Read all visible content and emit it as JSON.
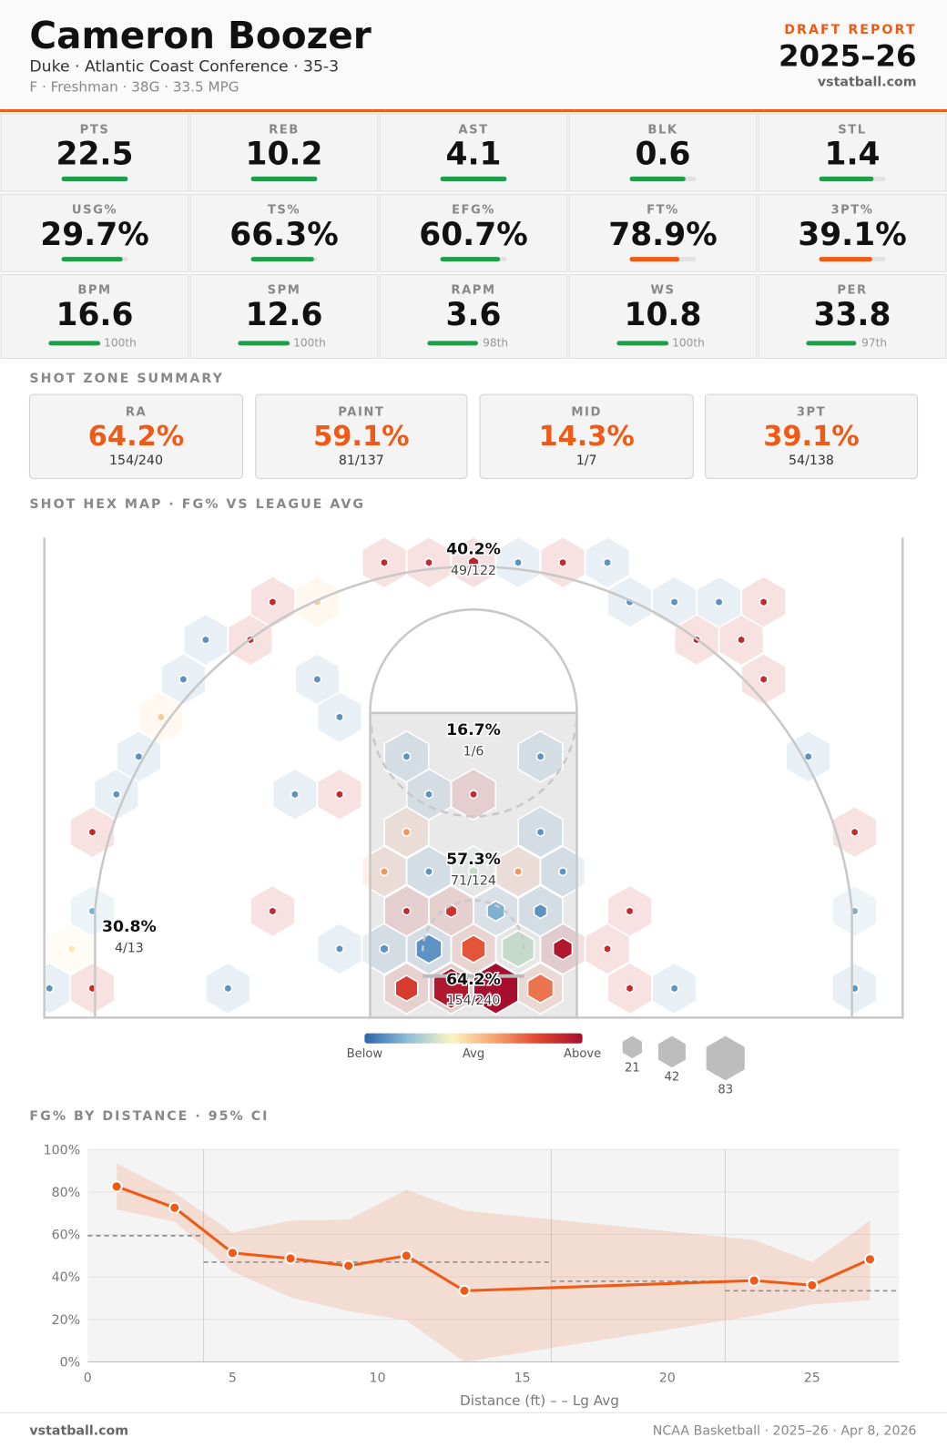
{
  "header": {
    "name": "Cameron Boozer",
    "subtitle": "Duke · Atlantic Coast Conference · 35-3",
    "meta": "F · Freshman · 38G · 33.5 MPG",
    "report_label": "DRAFT REPORT",
    "season": "2025–26",
    "site": "vstatball.com"
  },
  "stats": [
    {
      "label": "PTS",
      "value": "22.5",
      "bar": 100,
      "bar_color": "#1f9e4a"
    },
    {
      "label": "REB",
      "value": "10.2",
      "bar": 100,
      "bar_color": "#1f9e4a"
    },
    {
      "label": "AST",
      "value": "4.1",
      "bar": 100,
      "bar_color": "#1f9e4a"
    },
    {
      "label": "BLK",
      "value": "0.6",
      "bar": 84,
      "bar_color": "#1f9e4a"
    },
    {
      "label": "STL",
      "value": "1.4",
      "bar": 82,
      "bar_color": "#1f9e4a"
    },
    {
      "label": "USG%",
      "value": "29.7%",
      "bar": 92,
      "bar_color": "#1f9e4a"
    },
    {
      "label": "TS%",
      "value": "66.3%",
      "bar": 95,
      "bar_color": "#1f9e4a"
    },
    {
      "label": "EFG%",
      "value": "60.7%",
      "bar": 90,
      "bar_color": "#1f9e4a"
    },
    {
      "label": "FT%",
      "value": "78.9%",
      "bar": 75,
      "bar_color": "#f05a14"
    },
    {
      "label": "3PT%",
      "value": "39.1%",
      "bar": 80,
      "bar_color": "#f05a14"
    },
    {
      "label": "BPM",
      "value": "16.6",
      "bar": 100,
      "bar_label": "100th",
      "bar_color": "#1f9e4a"
    },
    {
      "label": "SPM",
      "value": "12.6",
      "bar": 100,
      "bar_label": "100th",
      "bar_color": "#1f9e4a"
    },
    {
      "label": "RAPM",
      "value": "3.6",
      "bar": 98,
      "bar_label": "98th",
      "bar_color": "#1f9e4a"
    },
    {
      "label": "WS",
      "value": "10.8",
      "bar": 100,
      "bar_label": "100th",
      "bar_color": "#1f9e4a"
    },
    {
      "label": "PER",
      "value": "33.8",
      "bar": 97,
      "bar_label": "97th",
      "bar_color": "#1f9e4a"
    }
  ],
  "zones": {
    "title": "SHOT ZONE SUMMARY",
    "items": [
      {
        "label": "RA",
        "pct": "64.2%",
        "made": "154/240"
      },
      {
        "label": "PAINT",
        "pct": "59.1%",
        "made": "81/137"
      },
      {
        "label": "MID",
        "pct": "14.3%",
        "made": "1/7"
      },
      {
        "label": "3PT",
        "pct": "39.1%",
        "made": "54/138"
      }
    ]
  },
  "chart_data": [
    {
      "type": "hexbin",
      "title": "SHOT HEX MAP · FG% VS LEAGUE AVG",
      "clim": [
        -15,
        15
      ],
      "colors": [
        "#2b65ad",
        "#90bfd6",
        "#fbf5c0",
        "#f6a26e",
        "#e0452f",
        "#a50f2d"
      ],
      "color_legend": [
        "Below",
        "Avg",
        "Above"
      ],
      "size_legend": [
        21,
        42,
        83
      ],
      "annotations": [
        {
          "pct": "40.2%",
          "made": "49/122"
        },
        {
          "pct": "16.7%",
          "made": "1/6"
        },
        {
          "pct": "57.3%",
          "made": "71/124"
        },
        {
          "pct": "64.2%",
          "made": "154/240"
        },
        {
          "pct": "30.8%",
          "made": "4/13"
        }
      ],
      "hexes": [
        {
          "x": -24.7,
          "y": 1.7,
          "attempts": 3,
          "diff": -12
        },
        {
          "x": -22.2,
          "y": 1.7,
          "attempts": 3,
          "diff": 12
        },
        {
          "x": -14.3,
          "y": 1.7,
          "attempts": 3,
          "diff": -12
        },
        {
          "x": -3.9,
          "y": 1.7,
          "attempts": 28,
          "diff": 10
        },
        {
          "x": -1.3,
          "y": 1.7,
          "attempts": 70,
          "diff": 14
        },
        {
          "x": 1.3,
          "y": 1.7,
          "attempts": 110,
          "diff": 15
        },
        {
          "x": 3.9,
          "y": 1.7,
          "attempts": 36,
          "diff": 6
        },
        {
          "x": 9.1,
          "y": 1.7,
          "attempts": 3,
          "diff": 12
        },
        {
          "x": 11.7,
          "y": 1.7,
          "attempts": 3,
          "diff": -12
        },
        {
          "x": 22.2,
          "y": 1.7,
          "attempts": 3,
          "diff": -12
        },
        {
          "x": -23.4,
          "y": 4.0,
          "attempts": 3,
          "diff": -2
        },
        {
          "x": -7.8,
          "y": 4.0,
          "attempts": 3,
          "diff": -12
        },
        {
          "x": -5.2,
          "y": 4.0,
          "attempts": 4,
          "diff": -12
        },
        {
          "x": -2.6,
          "y": 4.0,
          "attempts": 36,
          "diff": -12
        },
        {
          "x": 0,
          "y": 4.0,
          "attempts": 32,
          "diff": 8
        },
        {
          "x": 2.6,
          "y": 4.0,
          "attempts": 57,
          "diff": -6
        },
        {
          "x": 5.2,
          "y": 4.0,
          "attempts": 20,
          "diff": 14
        },
        {
          "x": 7.8,
          "y": 4.0,
          "attempts": 3,
          "diff": 12
        },
        {
          "x": -22.2,
          "y": 6.2,
          "attempts": 3,
          "diff": -10
        },
        {
          "x": -11.7,
          "y": 6.2,
          "attempts": 3,
          "diff": 12
        },
        {
          "x": -3.9,
          "y": 6.2,
          "attempts": 3,
          "diff": 12
        },
        {
          "x": -1.3,
          "y": 6.2,
          "attempts": 7,
          "diff": 11
        },
        {
          "x": 1.3,
          "y": 6.2,
          "attempts": 17,
          "diff": -10
        },
        {
          "x": 3.9,
          "y": 6.2,
          "attempts": 9,
          "diff": -12
        },
        {
          "x": 9.1,
          "y": 6.2,
          "attempts": 3,
          "diff": 12
        },
        {
          "x": 22.2,
          "y": 6.2,
          "attempts": 3,
          "diff": -10
        },
        {
          "x": -5.2,
          "y": 8.5,
          "attempts": 3,
          "diff": 4
        },
        {
          "x": -2.6,
          "y": 8.5,
          "attempts": 3,
          "diff": -12
        },
        {
          "x": 0,
          "y": 8.5,
          "attempts": 5,
          "diff": -6
        },
        {
          "x": 2.6,
          "y": 8.5,
          "attempts": 3,
          "diff": 4
        },
        {
          "x": 5.2,
          "y": 8.5,
          "attempts": 3,
          "diff": -12
        },
        {
          "x": -22.2,
          "y": 10.8,
          "attempts": 3,
          "diff": 12
        },
        {
          "x": -3.9,
          "y": 10.8,
          "attempts": 3,
          "diff": 4
        },
        {
          "x": 3.9,
          "y": 10.8,
          "attempts": 3,
          "diff": -12
        },
        {
          "x": 22.2,
          "y": 10.8,
          "attempts": 3,
          "diff": 12
        },
        {
          "x": -20.8,
          "y": 13.0,
          "attempts": 3,
          "diff": -12
        },
        {
          "x": -10.4,
          "y": 13.0,
          "attempts": 3,
          "diff": -12
        },
        {
          "x": -7.8,
          "y": 13.0,
          "attempts": 3,
          "diff": 12
        },
        {
          "x": -2.6,
          "y": 13.0,
          "attempts": 3,
          "diff": -12
        },
        {
          "x": 0,
          "y": 13.0,
          "attempts": 3,
          "diff": 12
        },
        {
          "x": -19.5,
          "y": 15.2,
          "attempts": 3,
          "diff": -12
        },
        {
          "x": -3.9,
          "y": 15.2,
          "attempts": 3,
          "diff": -12
        },
        {
          "x": 3.9,
          "y": 15.2,
          "attempts": 3,
          "diff": -12
        },
        {
          "x": 19.5,
          "y": 15.2,
          "attempts": 3,
          "diff": -12
        },
        {
          "x": -18.2,
          "y": 17.5,
          "attempts": 3,
          "diff": 0
        },
        {
          "x": -7.8,
          "y": 17.5,
          "attempts": 3,
          "diff": -12
        },
        {
          "x": -16.9,
          "y": 19.7,
          "attempts": 3,
          "diff": -12
        },
        {
          "x": -9.1,
          "y": 19.7,
          "attempts": 3,
          "diff": -12
        },
        {
          "x": 16.9,
          "y": 19.7,
          "attempts": 3,
          "diff": 12
        },
        {
          "x": -15.6,
          "y": 22.0,
          "attempts": 3,
          "diff": -12
        },
        {
          "x": -13.0,
          "y": 22.0,
          "attempts": 3,
          "diff": 12
        },
        {
          "x": 13.0,
          "y": 22.0,
          "attempts": 3,
          "diff": 12
        },
        {
          "x": 15.6,
          "y": 22.0,
          "attempts": 3,
          "diff": 12
        },
        {
          "x": -11.7,
          "y": 24.2,
          "attempts": 3,
          "diff": 12
        },
        {
          "x": -9.1,
          "y": 24.2,
          "attempts": 3,
          "diff": 0
        },
        {
          "x": 9.1,
          "y": 24.2,
          "attempts": 3,
          "diff": -12
        },
        {
          "x": 11.7,
          "y": 24.2,
          "attempts": 3,
          "diff": -12
        },
        {
          "x": 14.3,
          "y": 24.2,
          "attempts": 3,
          "diff": -12
        },
        {
          "x": 16.9,
          "y": 24.2,
          "attempts": 3,
          "diff": 12
        },
        {
          "x": -5.2,
          "y": 26.5,
          "attempts": 3,
          "diff": 12
        },
        {
          "x": -2.6,
          "y": 26.5,
          "attempts": 3,
          "diff": 12
        },
        {
          "x": 0,
          "y": 26.5,
          "attempts": 6,
          "diff": 13
        },
        {
          "x": 2.6,
          "y": 26.5,
          "attempts": 3,
          "diff": -12
        },
        {
          "x": 5.2,
          "y": 26.5,
          "attempts": 3,
          "diff": 12
        },
        {
          "x": 7.8,
          "y": 26.5,
          "attempts": 3,
          "diff": -12
        }
      ]
    },
    {
      "type": "line",
      "title": "FG% BY DISTANCE · 95% CI",
      "xlabel": "Distance (ft) – – Lg Avg",
      "x": [
        1,
        3,
        5,
        7,
        9,
        11,
        13,
        23,
        25,
        27
      ],
      "series": [
        {
          "color": "#f05a14",
          "values": [
            82.6,
            72.6,
            51.3,
            48.7,
            45.2,
            50,
            33.5,
            38.3,
            36.1,
            48.3
          ],
          "ci_high": [
            93.5,
            79.6,
            60.9,
            66.5,
            67,
            80.9,
            71.3,
            57.4,
            47,
            66.5
          ],
          "ci_low": [
            71.7,
            66,
            42.6,
            30.4,
            23.9,
            19.6,
            0,
            21.7,
            27,
            29.1
          ]
        }
      ],
      "lg_avg": [
        {
          "range": [
            0,
            4
          ],
          "value": 59.4
        },
        {
          "range": [
            4,
            16
          ],
          "value": 47
        },
        {
          "range": [
            16,
            22
          ],
          "value": 38
        },
        {
          "range": [
            22,
            28
          ],
          "value": 33.5
        }
      ],
      "xlim": [
        0,
        28
      ],
      "ylim": [
        0,
        100
      ],
      "xticks": [
        0,
        5,
        10,
        15,
        20,
        25
      ],
      "yticks": [
        {
          "value": 0,
          "label": "0%"
        },
        {
          "value": 20,
          "label": "20%"
        },
        {
          "value": 40,
          "label": "40%"
        },
        {
          "value": 60,
          "label": "60%"
        },
        {
          "value": 80,
          "label": "80%"
        },
        {
          "value": 100,
          "label": "100%"
        }
      ],
      "grid": true
    }
  ],
  "footer": {
    "left": "vstatball.com",
    "right": "NCAA Basketball · 2025–26 · Apr 8, 2026"
  }
}
